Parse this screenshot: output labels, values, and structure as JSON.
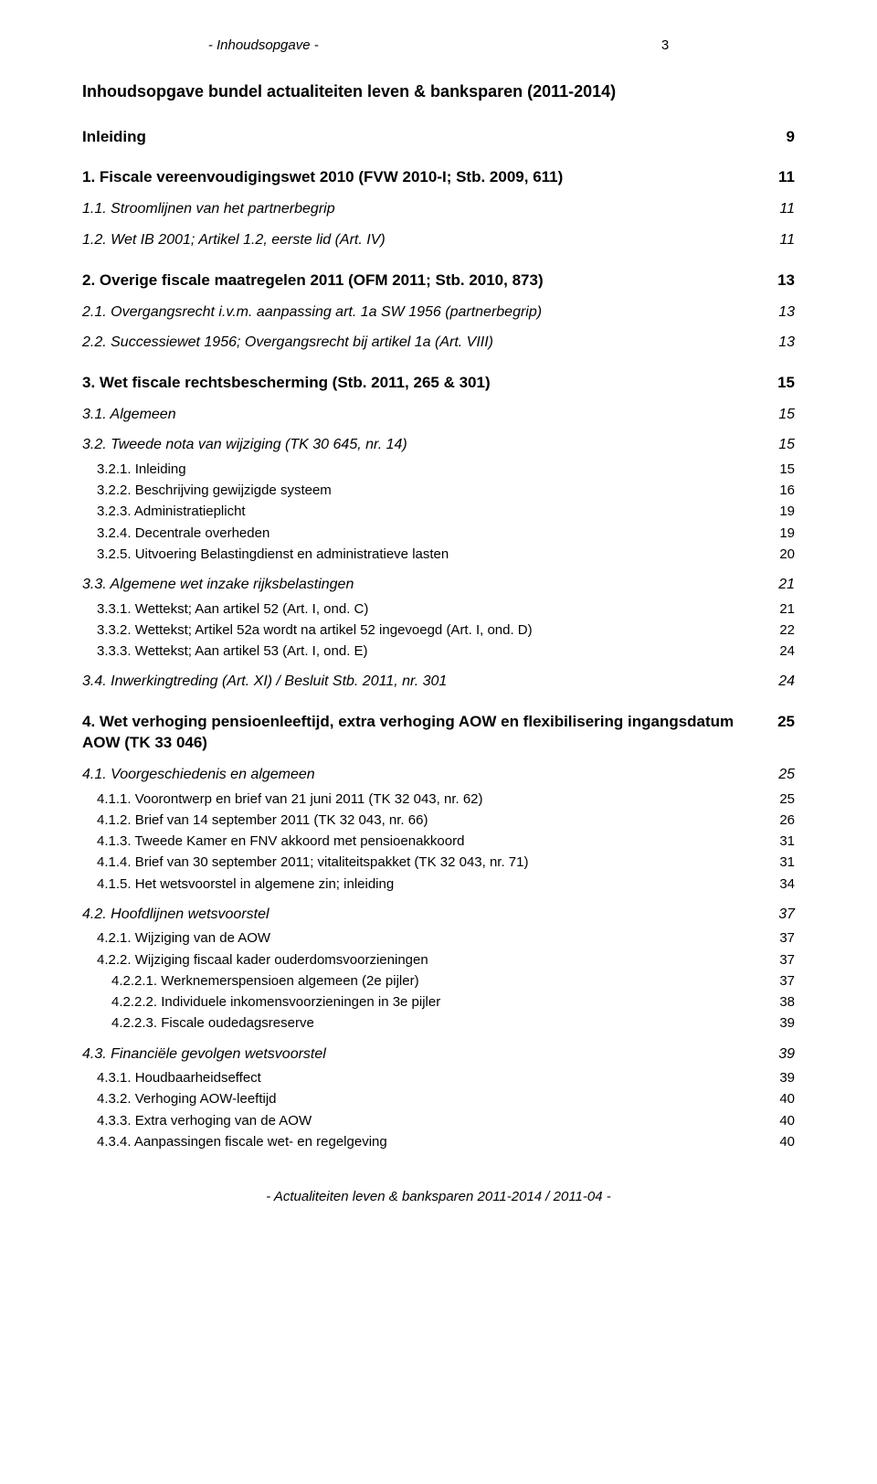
{
  "header": "- Inhoudsopgave -",
  "header_pg": "3",
  "title": "Inhoudsopgave bundel actualiteiten leven & banksparen (2011-2014)",
  "rows": [
    {
      "level": "h1",
      "label": "Inleiding",
      "pg": "9"
    },
    {
      "level": "h1",
      "label": "1. Fiscale vereenvoudigingswet 2010 (FVW 2010-I; Stb. 2009, 611)",
      "pg": "11"
    },
    {
      "level": "h2",
      "label": "1.1. Stroomlijnen van het partnerbegrip",
      "pg": "11"
    },
    {
      "level": "h2",
      "label": "1.2. Wet IB 2001; Artikel 1.2, eerste lid (Art. IV)",
      "pg": "11"
    },
    {
      "level": "h1",
      "label": "2. Overige fiscale maatregelen 2011 (OFM 2011; Stb. 2010, 873)",
      "pg": "13"
    },
    {
      "level": "h2",
      "label": "2.1. Overgangsrecht i.v.m. aanpassing art. 1a SW 1956 (partnerbegrip)",
      "pg": "13"
    },
    {
      "level": "h2",
      "label": "2.2. Successiewet 1956; Overgangsrecht bij artikel 1a (Art. VIII)",
      "pg": "13"
    },
    {
      "level": "h1",
      "label": "3. Wet fiscale rechtsbescherming (Stb. 2011, 265 & 301)",
      "pg": "15"
    },
    {
      "level": "h2",
      "label": "3.1. Algemeen",
      "pg": "15"
    },
    {
      "level": "h2",
      "label": "3.2. Tweede nota van wijziging (TK 30 645, nr. 14)",
      "pg": "15"
    },
    {
      "level": "h3",
      "indent": 1,
      "label": "3.2.1. Inleiding",
      "pg": "15"
    },
    {
      "level": "h3",
      "indent": 1,
      "label": "3.2.2. Beschrijving gewijzigde systeem",
      "pg": "16"
    },
    {
      "level": "h3",
      "indent": 1,
      "label": "3.2.3. Administratieplicht",
      "pg": "19"
    },
    {
      "level": "h3",
      "indent": 1,
      "label": "3.2.4. Decentrale overheden",
      "pg": "19"
    },
    {
      "level": "h3",
      "indent": 1,
      "label": "3.2.5. Uitvoering Belastingdienst en administratieve lasten",
      "pg": "20"
    },
    {
      "level": "h2",
      "label": "3.3. Algemene wet inzake rijksbelastingen",
      "pg": "21"
    },
    {
      "level": "h3",
      "indent": 1,
      "label": "3.3.1. Wettekst; Aan artikel 52 (Art. I, ond. C)",
      "pg": "21"
    },
    {
      "level": "h3",
      "indent": 1,
      "label": "3.3.2. Wettekst; Artikel 52a wordt na artikel 52 ingevoegd (Art. I, ond. D)",
      "pg": "22"
    },
    {
      "level": "h3",
      "indent": 1,
      "label": "3.3.3. Wettekst; Aan artikel 53 (Art. I, ond. E)",
      "pg": "24"
    },
    {
      "level": "h2",
      "label": "3.4. Inwerkingtreding (Art. XI) / Besluit Stb. 2011, nr. 301",
      "pg": "24"
    },
    {
      "level": "h1",
      "label": "4. Wet verhoging pensioenleeftijd, extra verhoging AOW en flexibilisering ingangsdatum AOW (TK 33 046)",
      "pg": "25"
    },
    {
      "level": "h2",
      "label": "4.1. Voorgeschiedenis en algemeen",
      "pg": "25"
    },
    {
      "level": "h3",
      "indent": 1,
      "label": "4.1.1. Voorontwerp en brief van 21 juni 2011 (TK 32 043, nr. 62)",
      "pg": "25"
    },
    {
      "level": "h3",
      "indent": 1,
      "label": "4.1.2. Brief van 14 september 2011 (TK 32 043, nr. 66)",
      "pg": "26"
    },
    {
      "level": "h3",
      "indent": 1,
      "label": "4.1.3. Tweede Kamer en FNV akkoord met pensioenakkoord",
      "pg": "31"
    },
    {
      "level": "h3",
      "indent": 1,
      "label": "4.1.4. Brief van 30 september 2011; vitaliteitspakket (TK 32 043, nr. 71)",
      "pg": "31"
    },
    {
      "level": "h3",
      "indent": 1,
      "label": "4.1.5. Het wetsvoorstel in algemene zin; inleiding",
      "pg": "34"
    },
    {
      "level": "h2",
      "label": "4.2. Hoofdlijnen wetsvoorstel",
      "pg": "37"
    },
    {
      "level": "h3",
      "indent": 1,
      "label": "4.2.1. Wijziging van de AOW",
      "pg": "37"
    },
    {
      "level": "h3",
      "indent": 1,
      "label": "4.2.2. Wijziging fiscaal kader ouderdomsvoorzieningen",
      "pg": "37"
    },
    {
      "level": "h4",
      "indent": 2,
      "label": "4.2.2.1. Werknemerspensioen algemeen (2e pijler)",
      "pg": "37"
    },
    {
      "level": "h4",
      "indent": 2,
      "label": "4.2.2.2. Individuele inkomensvoorzieningen in 3e pijler",
      "pg": "38"
    },
    {
      "level": "h4",
      "indent": 2,
      "label": "4.2.2.3. Fiscale oudedagsreserve",
      "pg": "39"
    },
    {
      "level": "h2",
      "label": "4.3. Financiële gevolgen wetsvoorstel",
      "pg": "39"
    },
    {
      "level": "h3",
      "indent": 1,
      "label": "4.3.1. Houdbaarheidseffect",
      "pg": "39"
    },
    {
      "level": "h3",
      "indent": 1,
      "label": "4.3.2. Verhoging AOW-leeftijd",
      "pg": "40"
    },
    {
      "level": "h3",
      "indent": 1,
      "label": "4.3.3. Extra verhoging van de AOW",
      "pg": "40"
    },
    {
      "level": "h3",
      "indent": 1,
      "label": "4.3.4. Aanpassingen fiscale wet- en regelgeving",
      "pg": "40"
    }
  ],
  "footer": "- Actualiteiten leven & banksparen 2011-2014 / 2011-04 -"
}
